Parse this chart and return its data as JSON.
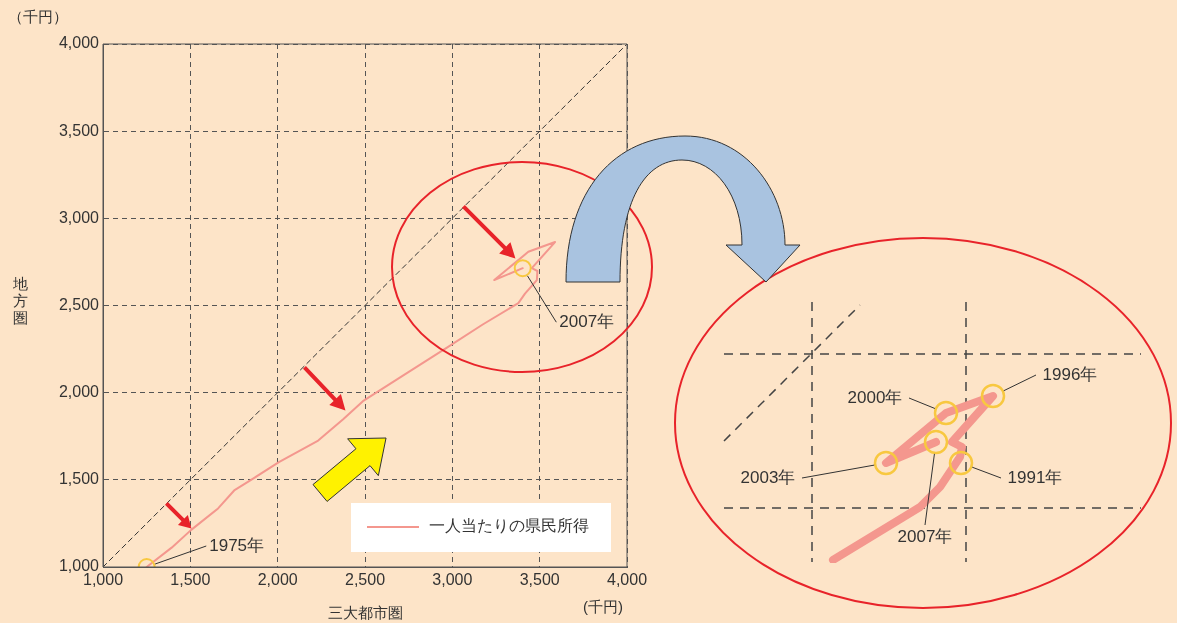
{
  "chart_data": [
    {
      "type": "line",
      "xlabel": "三大都市圏",
      "ylabel": "地方圏",
      "xlim": [
        1000,
        4000
      ],
      "ylim": [
        1000,
        4000
      ],
      "xticks": [
        {
          "value": 1000,
          "label": "1,000"
        },
        {
          "value": 1500,
          "label": "1,500"
        },
        {
          "value": 2000,
          "label": "2,000"
        },
        {
          "value": 2500,
          "label": "2,500"
        },
        {
          "value": 3000,
          "label": "3,000"
        },
        {
          "value": 3500,
          "label": "3,500"
        },
        {
          "value": 4000,
          "label": "4,000"
        }
      ],
      "yticks": [
        {
          "value": 1000,
          "label": "1,000"
        },
        {
          "value": 1500,
          "label": "1,500"
        },
        {
          "value": 2000,
          "label": "2,000"
        },
        {
          "value": 2500,
          "label": "2,500"
        },
        {
          "value": 3000,
          "label": "3,000"
        },
        {
          "value": 3500,
          "label": "3,500"
        },
        {
          "value": 4000,
          "label": "4,000"
        }
      ],
      "grid": true,
      "legend": "bottom right",
      "series": [
        {
          "name": "一人当たりの県民所得",
          "color": "#f4978e",
          "x": [
            1250,
            1393,
            1505,
            1659,
            1751,
            1864,
            2007,
            2232,
            2375,
            2488,
            2744,
            2969,
            3174,
            3378,
            3416,
            3484,
            3487,
            3455,
            3588,
            3435,
            3240,
            3403
          ],
          "values": [
            1000,
            1111,
            1213,
            1336,
            1439,
            1510,
            1602,
            1725,
            1848,
            1951,
            2115,
            2258,
            2391,
            2514,
            2568,
            2646,
            2698,
            2714,
            2864,
            2808,
            2646,
            2714
          ]
        },
        {
          "type": "line",
          "color": "#333333",
          "line_style": "dashed",
          "x": [
            1000,
            4000
          ],
          "values": [
            1000,
            4000
          ]
        },
        {
          "type": "scatter",
          "color": "#f8c840",
          "marker": "circle",
          "x": [
            1250,
            3403
          ],
          "values": [
            1000,
            2714
          ]
        }
      ],
      "annotations": [
        {
          "text": "1975年",
          "x": 1250,
          "y": 1000
        },
        {
          "text": "2007年",
          "x": 3403,
          "y": 2714
        },
        "（千円）",
        "(千円)"
      ]
    },
    {
      "type": "other",
      "annotations": [
        "2000年",
        "1996年",
        "2003年",
        "1991年",
        "2007年"
      ]
    }
  ]
}
